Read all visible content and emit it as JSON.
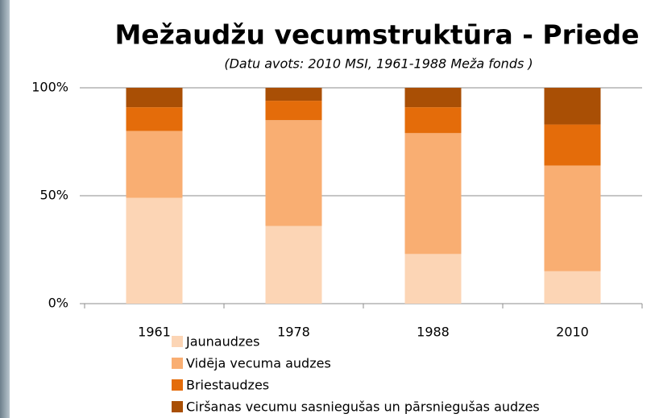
{
  "chart_data": {
    "type": "stacked_bar",
    "title": "Mežaudžu vecumstruktūra - Priede",
    "subtitle": "(Datu avots: 2010 MSI, 1961-1988 Meža fonds )",
    "categories": [
      "1961",
      "1978",
      "1988",
      "2010"
    ],
    "series": [
      {
        "name": "Jaunaudzes",
        "color": "#fcd5b5",
        "values": [
          49,
          36,
          23,
          15
        ]
      },
      {
        "name": "Vidēja vecuma audzes",
        "color": "#f9ae72",
        "values": [
          31,
          49,
          56,
          49
        ]
      },
      {
        "name": "Briestaudzes",
        "color": "#e46c0a",
        "values": [
          11,
          9,
          12,
          19
        ]
      },
      {
        "name": "Ciršanas vecumu sasniegušas un pārsniegušas audzes",
        "color": "#a94f05",
        "values": [
          9,
          6,
          9,
          17
        ]
      }
    ],
    "ylim": [
      0,
      100
    ],
    "yticks": [
      {
        "value": 0,
        "label": "0%"
      },
      {
        "value": 50,
        "label": "50%"
      },
      {
        "value": 100,
        "label": "100%"
      }
    ],
    "grid": true
  }
}
